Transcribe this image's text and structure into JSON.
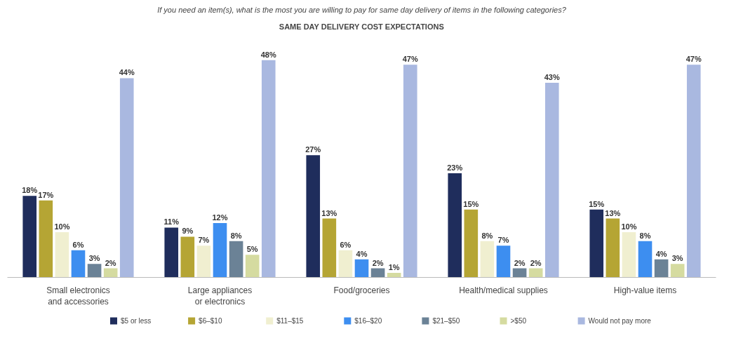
{
  "chart_data": {
    "type": "bar",
    "subtitle": "If you need an item(s), what is the most you are willing to pay for same day delivery of items in the following categories?",
    "title": "SAME DAY DELIVERY COST EXPECTATIONS",
    "categories": [
      "Small electronics\nand accessories",
      "Large appliances\nor electronics",
      "Food/groceries",
      "Health/medical supplies",
      "High-value items"
    ],
    "series": [
      {
        "name": "$5 or less",
        "color": "#1f2d5c",
        "values": [
          18,
          11,
          27,
          23,
          15
        ],
        "value_labels": [
          "18%",
          "11%",
          "27%",
          "23%",
          "15%"
        ]
      },
      {
        "name": "$6–$10",
        "color": "#b5a534",
        "values": [
          17,
          9,
          13,
          15,
          13
        ],
        "value_labels": [
          "17%",
          "9%",
          "13%",
          "15%",
          "13%"
        ]
      },
      {
        "name": "$11–$15",
        "color": "#f0efd0",
        "values": [
          10,
          7,
          6,
          8,
          10
        ],
        "value_labels": [
          "10%",
          "7%",
          "6%",
          "8%",
          "10%"
        ]
      },
      {
        "name": "$16–$20",
        "color": "#3d8ef0",
        "values": [
          6,
          12,
          4,
          7,
          8
        ],
        "value_labels": [
          "6%",
          "12%",
          "4%",
          "7%",
          "8%"
        ]
      },
      {
        "name": "$21–$50",
        "color": "#6b8296",
        "values": [
          3,
          8,
          2,
          2,
          4
        ],
        "value_labels": [
          "3%",
          "8%",
          "2%",
          "2%",
          "4%"
        ]
      },
      {
        "name": ">$50",
        "color": "#d5dba0",
        "values": [
          2,
          5,
          1,
          2,
          3
        ],
        "value_labels": [
          "2%",
          "5%",
          "1%",
          "2%",
          "3%"
        ]
      },
      {
        "name": "Would not pay more",
        "color": "#a9b8e0",
        "values": [
          44,
          48,
          47,
          43,
          47
        ],
        "value_labels": [
          "44%",
          "48%",
          "47%",
          "43%",
          "47%"
        ]
      }
    ],
    "legend": "bottom"
  }
}
